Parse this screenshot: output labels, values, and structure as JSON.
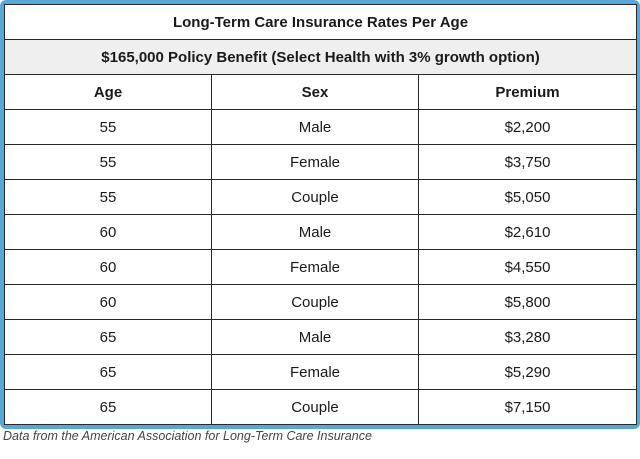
{
  "table": {
    "title": "Long-Term Care Insurance Rates Per Age",
    "subtitle": "$165,000 Policy Benefit (Select Health with 3% growth option)",
    "columns": [
      "Age",
      "Sex",
      "Premium"
    ],
    "rows": [
      {
        "age": "55",
        "sex": "Male",
        "premium": "$2,200"
      },
      {
        "age": "55",
        "sex": "Female",
        "premium": "$3,750"
      },
      {
        "age": "55",
        "sex": "Couple",
        "premium": "$5,050"
      },
      {
        "age": "60",
        "sex": "Male",
        "premium": "$2,610"
      },
      {
        "age": "60",
        "sex": "Female",
        "premium": "$4,550"
      },
      {
        "age": "60",
        "sex": "Couple",
        "premium": "$5,800"
      },
      {
        "age": "65",
        "sex": "Male",
        "premium": "$3,280"
      },
      {
        "age": "65",
        "sex": "Female",
        "premium": "$5,290"
      },
      {
        "age": "65",
        "sex": "Couple",
        "premium": "$7,150"
      }
    ]
  },
  "caption": "Data from the American Association for Long-Term Care Insurance",
  "colors": {
    "frame": "#58a7d9",
    "subtitle_background": "#efefef",
    "border": "#2a2a2a"
  }
}
